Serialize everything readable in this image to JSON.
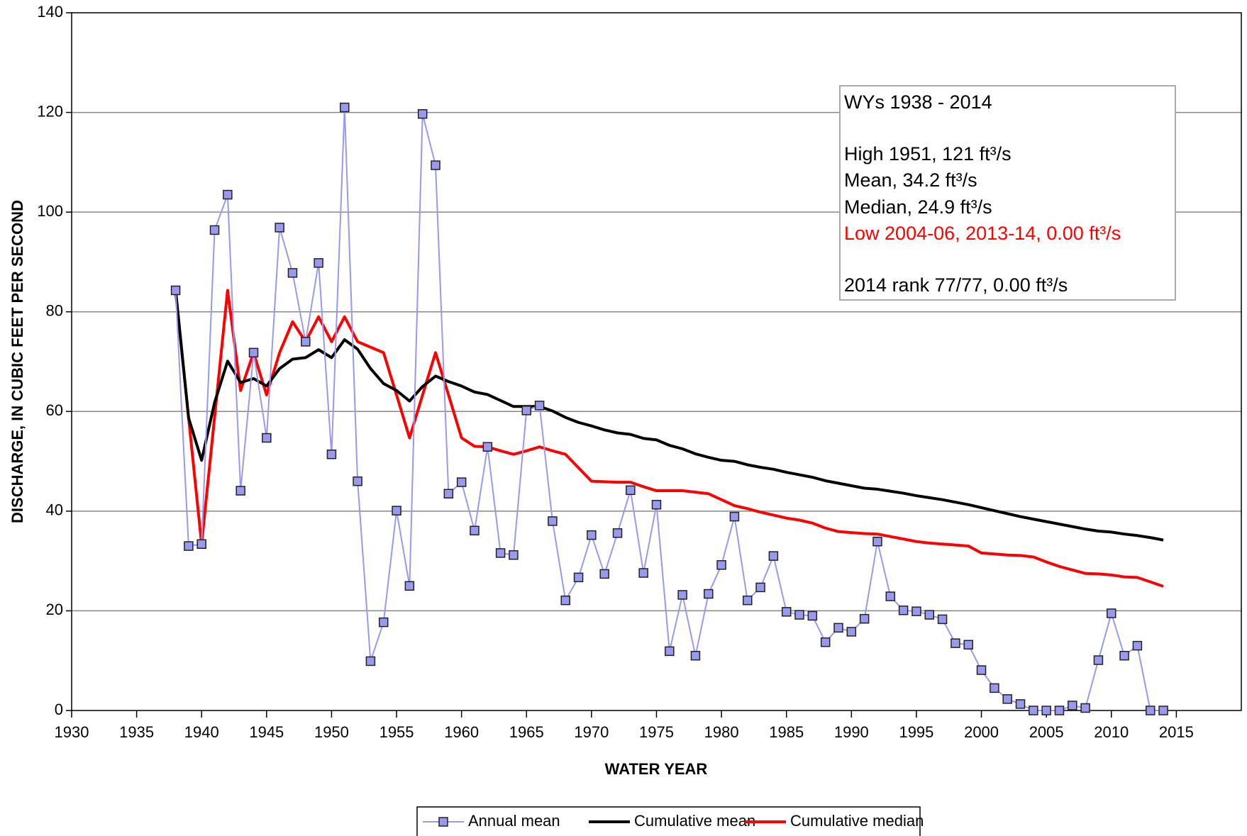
{
  "chart_data": {
    "type": "line",
    "xlabel": "WATER YEAR",
    "ylabel": "DISCHARGE, IN CUBIC FEET PER SECOND",
    "x": [
      1938,
      1939,
      1940,
      1941,
      1942,
      1943,
      1944,
      1945,
      1946,
      1947,
      1948,
      1949,
      1950,
      1951,
      1952,
      1953,
      1954,
      1955,
      1956,
      1957,
      1958,
      1959,
      1960,
      1961,
      1962,
      1963,
      1964,
      1965,
      1966,
      1967,
      1968,
      1969,
      1970,
      1971,
      1972,
      1973,
      1974,
      1975,
      1976,
      1977,
      1978,
      1979,
      1980,
      1981,
      1982,
      1983,
      1984,
      1985,
      1986,
      1987,
      1988,
      1989,
      1990,
      1991,
      1992,
      1993,
      1994,
      1995,
      1996,
      1997,
      1998,
      1999,
      2000,
      2001,
      2002,
      2003,
      2004,
      2005,
      2006,
      2007,
      2008,
      2009,
      2010,
      2011,
      2012,
      2013,
      2014
    ],
    "series": [
      {
        "name": "Annual mean",
        "color": "#9999ee",
        "marker": true,
        "values": [
          84.3,
          33,
          33.4,
          96.4,
          103.5,
          44.1,
          71.8,
          54.7,
          96.9,
          87.8,
          74,
          89.8,
          51.4,
          121,
          46,
          9.9,
          17.7,
          40.1,
          25,
          119.7,
          109.4,
          43.5,
          45.8,
          36.1,
          52.9,
          31.6,
          31.2,
          60.2,
          61.2,
          38,
          22.1,
          26.7,
          35.2,
          27.4,
          35.6,
          44.2,
          27.6,
          41.3,
          11.9,
          23.2,
          11,
          23.4,
          29.2,
          38.9,
          22.1,
          24.7,
          31,
          19.8,
          19.2,
          19,
          13.7,
          16.6,
          15.8,
          18.4,
          33.9,
          22.9,
          20.1,
          19.9,
          19.2,
          18.3,
          13.5,
          13.2,
          8.1,
          4.5,
          2.3,
          1.3,
          0,
          0,
          0,
          1,
          0.5,
          10.1,
          19.5,
          11,
          13,
          0,
          0
        ]
      },
      {
        "name": "Cumulative mean",
        "color": "#000000",
        "marker": false,
        "values": [
          84.3,
          58.7,
          50.2,
          61.8,
          70.1,
          65.8,
          66.6,
          65.1,
          68.6,
          70.5,
          70.8,
          72.4,
          70.8,
          74.4,
          72.5,
          68.6,
          65.6,
          64.2,
          62.1,
          65.0,
          67.1,
          66.0,
          65.1,
          63.9,
          63.4,
          62.2,
          61.0,
          61.0,
          61.0,
          60.1,
          58.8,
          57.8,
          57.1,
          56.3,
          55.7,
          55.4,
          54.6,
          54.3,
          53.2,
          52.5,
          51.5,
          50.8,
          50.2,
          50.0,
          49.3,
          48.8,
          48.4,
          47.8,
          47.3,
          46.8,
          46.1,
          45.6,
          45.1,
          44.6,
          44.4,
          44.0,
          43.6,
          43.1,
          42.7,
          42.3,
          41.8,
          41.3,
          40.7,
          40.1,
          39.5,
          38.9,
          38.4,
          37.9,
          37.4,
          36.9,
          36.4,
          36.0,
          35.8,
          35.4,
          35.1,
          34.7,
          34.2
        ]
      },
      {
        "name": "Cumulative median",
        "color": "#ff0000",
        "marker": false,
        "values": [
          84.3,
          58.7,
          33.4,
          58.9,
          84.3,
          64.2,
          71.8,
          63.3,
          71.8,
          78,
          74,
          79,
          74,
          79,
          74,
          72.9,
          71.8,
          63.3,
          54.7,
          63.3,
          71.8,
          63.3,
          54.7,
          53,
          52.9,
          52.1,
          51.4,
          52.1,
          52.9,
          52.1,
          51.4,
          48.7,
          46,
          45.9,
          45.8,
          45.8,
          44.9,
          44.1,
          44.1,
          44.1,
          43.8,
          43.5,
          42.3,
          41.1,
          40.5,
          39.8,
          39.2,
          38.6,
          38.2,
          37.6,
          36.6,
          35.9,
          35.7,
          35.5,
          35.4,
          34.9,
          34.4,
          33.9,
          33.6,
          33.4,
          33.2,
          33.0,
          31.6,
          31.4,
          31.2,
          31.1,
          30.8,
          29.8,
          28.9,
          28.2,
          27.5,
          27.4,
          27.2,
          26.8,
          26.7,
          25.8,
          24.9
        ]
      }
    ],
    "xlim": [
      1930,
      2020
    ],
    "xticks": [
      1930,
      1935,
      1940,
      1945,
      1950,
      1955,
      1960,
      1965,
      1970,
      1975,
      1980,
      1985,
      1990,
      1995,
      2000,
      2005,
      2010,
      2015
    ],
    "ylim": [
      0,
      140
    ],
    "yticks": [
      0,
      20,
      40,
      60,
      80,
      100,
      120,
      140
    ],
    "grid": true,
    "legend": "bottom",
    "annotations": [
      {
        "text": "WYs 1938 - 2014",
        "color": "#000000"
      },
      {
        "text": "High 1951, 121 ft³/s",
        "color": "#000000"
      },
      {
        "text": "Mean, 34.2 ft³/s",
        "color": "#000000"
      },
      {
        "text": "Median, 24.9 ft³/s",
        "color": "#000000"
      },
      {
        "text": "Low 2004-06, 2013-14, 0.00 ft³/s",
        "color": "#ff0000"
      },
      {
        "text": "2014 rank 77/77, 0.00 ft³/s",
        "color": "#000000"
      }
    ]
  }
}
